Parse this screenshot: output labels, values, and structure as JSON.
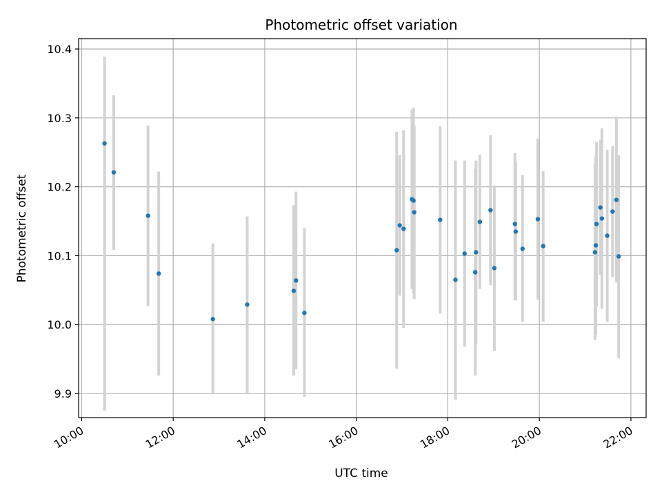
{
  "chart_data": {
    "type": "scatter",
    "title": "Photometric offset variation",
    "xlabel": "UTC time",
    "ylabel": "Photometric offset",
    "grid": true,
    "x_ticks": [
      "10:00",
      "12:00",
      "14:00",
      "16:00",
      "18:00",
      "20:00",
      "22:00"
    ],
    "y_ticks": [
      "9.9",
      "10.0",
      "10.1",
      "10.2",
      "10.3",
      "10.4"
    ],
    "xlim": [
      "09:56",
      "22:20"
    ],
    "ylim": [
      9.865,
      10.415
    ],
    "colors": {
      "point": "#1f77b4",
      "errorbar": "#d3d3d3",
      "grid": "#b0b0b0"
    },
    "points": [
      {
        "x": "10:30",
        "y": 10.263,
        "err_low": 9.875,
        "err_high": 10.389
      },
      {
        "x": "10:42",
        "y": 10.221,
        "err_low": 10.108,
        "err_high": 10.333
      },
      {
        "x": "11:27",
        "y": 10.158,
        "err_low": 10.027,
        "err_high": 10.289
      },
      {
        "x": "11:41",
        "y": 10.074,
        "err_low": 9.926,
        "err_high": 10.222
      },
      {
        "x": "12:52",
        "y": 10.008,
        "err_low": 9.9,
        "err_high": 10.118
      },
      {
        "x": "13:37",
        "y": 10.029,
        "err_low": 9.9,
        "err_high": 10.157
      },
      {
        "x": "14:38",
        "y": 10.049,
        "err_low": 9.926,
        "err_high": 10.173
      },
      {
        "x": "14:41",
        "y": 10.064,
        "err_low": 9.935,
        "err_high": 10.193
      },
      {
        "x": "14:52",
        "y": 10.017,
        "err_low": 9.895,
        "err_high": 10.14
      },
      {
        "x": "16:53",
        "y": 10.108,
        "err_low": 9.936,
        "err_high": 10.28
      },
      {
        "x": "16:57",
        "y": 10.144,
        "err_low": 10.042,
        "err_high": 10.246
      },
      {
        "x": "17:02",
        "y": 10.139,
        "err_low": 9.995,
        "err_high": 10.282
      },
      {
        "x": "17:13",
        "y": 10.182,
        "err_low": 10.052,
        "err_high": 10.312
      },
      {
        "x": "17:15",
        "y": 10.18,
        "err_low": 10.046,
        "err_high": 10.315
      },
      {
        "x": "17:16",
        "y": 10.163,
        "err_low": 10.037,
        "err_high": 10.289
      },
      {
        "x": "17:50",
        "y": 10.152,
        "err_low": 10.016,
        "err_high": 10.288
      },
      {
        "x": "18:10",
        "y": 10.065,
        "err_low": 9.891,
        "err_high": 10.238
      },
      {
        "x": "18:22",
        "y": 10.103,
        "err_low": 9.968,
        "err_high": 10.238
      },
      {
        "x": "18:36",
        "y": 10.076,
        "err_low": 9.926,
        "err_high": 10.226
      },
      {
        "x": "18:37",
        "y": 10.105,
        "err_low": 9.972,
        "err_high": 10.238
      },
      {
        "x": "18:42",
        "y": 10.149,
        "err_low": 10.052,
        "err_high": 10.247
      },
      {
        "x": "18:56",
        "y": 10.166,
        "err_low": 10.057,
        "err_high": 10.275
      },
      {
        "x": "19:01",
        "y": 10.082,
        "err_low": 9.962,
        "err_high": 10.202
      },
      {
        "x": "19:28",
        "y": 10.146,
        "err_low": 10.035,
        "err_high": 10.249
      },
      {
        "x": "19:29",
        "y": 10.135,
        "err_low": 10.035,
        "err_high": 10.236
      },
      {
        "x": "19:38",
        "y": 10.11,
        "err_low": 10.004,
        "err_high": 10.217
      },
      {
        "x": "19:58",
        "y": 10.153,
        "err_low": 10.036,
        "err_high": 10.27
      },
      {
        "x": "20:05",
        "y": 10.114,
        "err_low": 10.004,
        "err_high": 10.223
      },
      {
        "x": "21:13",
        "y": 10.105,
        "err_low": 9.978,
        "err_high": 10.233
      },
      {
        "x": "21:14",
        "y": 10.115,
        "err_low": 9.985,
        "err_high": 10.245
      },
      {
        "x": "21:15",
        "y": 10.146,
        "err_low": 10.027,
        "err_high": 10.265
      },
      {
        "x": "21:20",
        "y": 10.17,
        "err_low": 10.072,
        "err_high": 10.268
      },
      {
        "x": "21:22",
        "y": 10.154,
        "err_low": 10.023,
        "err_high": 10.285
      },
      {
        "x": "21:29",
        "y": 10.129,
        "err_low": 10.004,
        "err_high": 10.254
      },
      {
        "x": "21:36",
        "y": 10.164,
        "err_low": 10.069,
        "err_high": 10.259
      },
      {
        "x": "21:41",
        "y": 10.181,
        "err_low": 10.061,
        "err_high": 10.302
      },
      {
        "x": "21:44",
        "y": 10.099,
        "err_low": 9.951,
        "err_high": 10.246
      }
    ]
  }
}
